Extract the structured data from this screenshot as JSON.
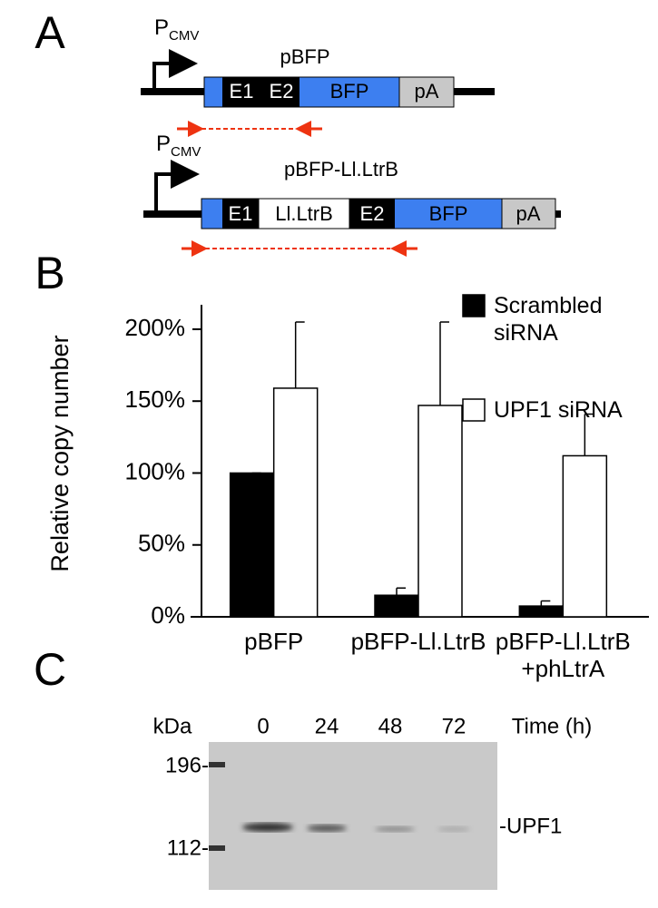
{
  "panel_labels": [
    "A",
    "B",
    "C"
  ],
  "construct_1": {
    "promoter": "P",
    "promoter_sub": "CMV",
    "name": "pBFP",
    "segments": [
      "E1",
      "E2",
      "BFP",
      "pA"
    ]
  },
  "construct_2": {
    "promoter": "P",
    "promoter_sub": "CMV",
    "name": "pBFP-Ll.LtrB",
    "segments": [
      "E1",
      "Ll.LtrB",
      "E2",
      "BFP",
      "pA"
    ]
  },
  "chart_data": {
    "type": "bar",
    "y_label": "Relative copy number",
    "categories": [
      "pBFP",
      "pBFP-Ll.LtrB",
      "pBFP-Ll.LtrB\n+phLtrA"
    ],
    "series": [
      {
        "name": "Scrambled siRNA",
        "color": "#000000",
        "values": [
          100,
          15,
          7.5
        ],
        "errors": [
          0,
          5,
          3.5
        ]
      },
      {
        "name": "UPF1 siRNA",
        "color": "#ffffff",
        "values": [
          159,
          147,
          112
        ],
        "errors": [
          46,
          58,
          29
        ]
      }
    ],
    "ylim": [
      0,
      217
    ],
    "yticks": [
      {
        "value": 0,
        "label": "0%"
      },
      {
        "value": 50,
        "label": "50%"
      },
      {
        "value": 100,
        "label": "100%"
      },
      {
        "value": 150,
        "label": "150%"
      },
      {
        "value": 200,
        "label": "200%"
      }
    ]
  },
  "blot": {
    "unit": "kDa",
    "lanes": [
      "0",
      "24",
      "48",
      "72"
    ],
    "lane_title": "Time (h)",
    "markers": [
      "196-",
      "112-"
    ],
    "band_label": "-UPF1"
  }
}
